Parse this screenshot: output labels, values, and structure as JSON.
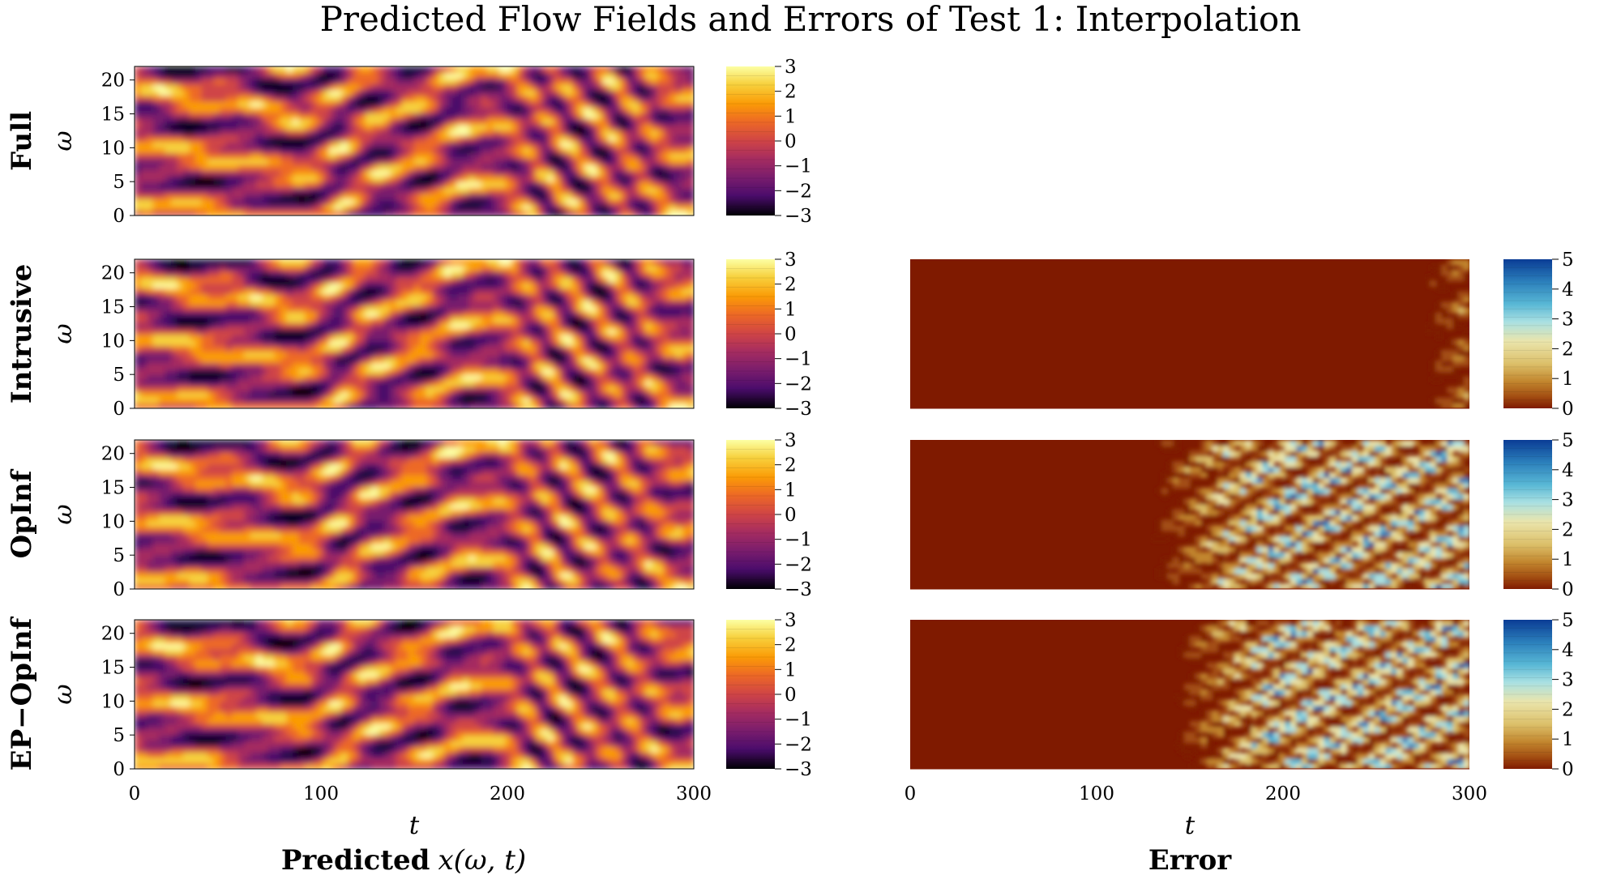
{
  "title": "Predicted Flow Fields and Errors of Test 1: Interpolation",
  "rows": [
    "Full",
    "Intrusive",
    "OpInf",
    "EP−OpInf"
  ],
  "ylabel": "ω",
  "xlabel": "t",
  "bottom_left": {
    "bold": "Predicted",
    "math": "x(ω, t)"
  },
  "bottom_right": "Error",
  "colors": {
    "field_scale": [
      "#000004",
      "#1b0c41",
      "#4a0c6b",
      "#781c6d",
      "#a52c60",
      "#cf4446",
      "#ed6925",
      "#fb9b06",
      "#f7d13d",
      "#fcffa4"
    ],
    "error_scale": [
      "#7f1a00",
      "#a34e12",
      "#c2862e",
      "#dcc06a",
      "#eae5ac",
      "#a9e0e2",
      "#58b7d5",
      "#2b7fbb",
      "#0a3c95"
    ]
  },
  "chart_data": [
    {
      "type": "heatmap",
      "panel": "Full — Predicted x(ω,t)",
      "x_ticks": [
        0,
        100,
        200,
        300
      ],
      "y_ticks": [
        0,
        5,
        10,
        15,
        20
      ],
      "xlim": [
        0,
        300
      ],
      "ylim": [
        0,
        22
      ],
      "colorbar": {
        "ticks": [
          "3",
          "2",
          "1",
          "0",
          "−1",
          "−2",
          "−3"
        ],
        "range": [
          -3,
          3
        ]
      }
    },
    {
      "type": "heatmap",
      "panel": "Intrusive — Predicted x(ω,t)",
      "x_ticks": [
        0,
        100,
        200,
        300
      ],
      "y_ticks": [
        0,
        5,
        10,
        15,
        20
      ],
      "xlim": [
        0,
        300
      ],
      "ylim": [
        0,
        22
      ],
      "colorbar": {
        "ticks": [
          "3",
          "2",
          "1",
          "0",
          "−1",
          "−2",
          "−3"
        ],
        "range": [
          -3,
          3
        ]
      }
    },
    {
      "type": "heatmap",
      "panel": "Intrusive — Error",
      "x_ticks": [
        0,
        100,
        200,
        300
      ],
      "xlim": [
        0,
        300
      ],
      "ylim": [
        0,
        22
      ],
      "error_onset_t": 275,
      "colorbar": {
        "ticks": [
          "5",
          "4",
          "3",
          "2",
          "1",
          "0"
        ],
        "range": [
          0,
          5
        ]
      }
    },
    {
      "type": "heatmap",
      "panel": "OpInf — Predicted x(ω,t)",
      "x_ticks": [
        0,
        100,
        200,
        300
      ],
      "y_ticks": [
        0,
        5,
        10,
        15,
        20
      ],
      "xlim": [
        0,
        300
      ],
      "ylim": [
        0,
        22
      ],
      "colorbar": {
        "ticks": [
          "3",
          "2",
          "1",
          "0",
          "−1",
          "−2",
          "−3"
        ],
        "range": [
          -3,
          3
        ]
      }
    },
    {
      "type": "heatmap",
      "panel": "OpInf — Error",
      "x_ticks": [
        0,
        100,
        200,
        300
      ],
      "xlim": [
        0,
        300
      ],
      "ylim": [
        0,
        22
      ],
      "error_onset_t": 130,
      "colorbar": {
        "ticks": [
          "5",
          "4",
          "3",
          "2",
          "1",
          "0"
        ],
        "range": [
          0,
          5
        ]
      }
    },
    {
      "type": "heatmap",
      "panel": "EP−OpInf — Predicted x(ω,t)",
      "x_ticks": [
        0,
        100,
        200,
        300
      ],
      "y_ticks": [
        0,
        5,
        10,
        15,
        20
      ],
      "xlim": [
        0,
        300
      ],
      "ylim": [
        0,
        22
      ],
      "colorbar": {
        "ticks": [
          "3",
          "2",
          "1",
          "0",
          "−1",
          "−2",
          "−3"
        ],
        "range": [
          -3,
          3
        ]
      }
    },
    {
      "type": "heatmap",
      "panel": "EP−OpInf — Error",
      "x_ticks": [
        0,
        100,
        200,
        300
      ],
      "xlim": [
        0,
        300
      ],
      "ylim": [
        0,
        22
      ],
      "error_onset_t": 140,
      "colorbar": {
        "ticks": [
          "5",
          "4",
          "3",
          "2",
          "1",
          "0"
        ],
        "range": [
          0,
          5
        ]
      }
    }
  ]
}
